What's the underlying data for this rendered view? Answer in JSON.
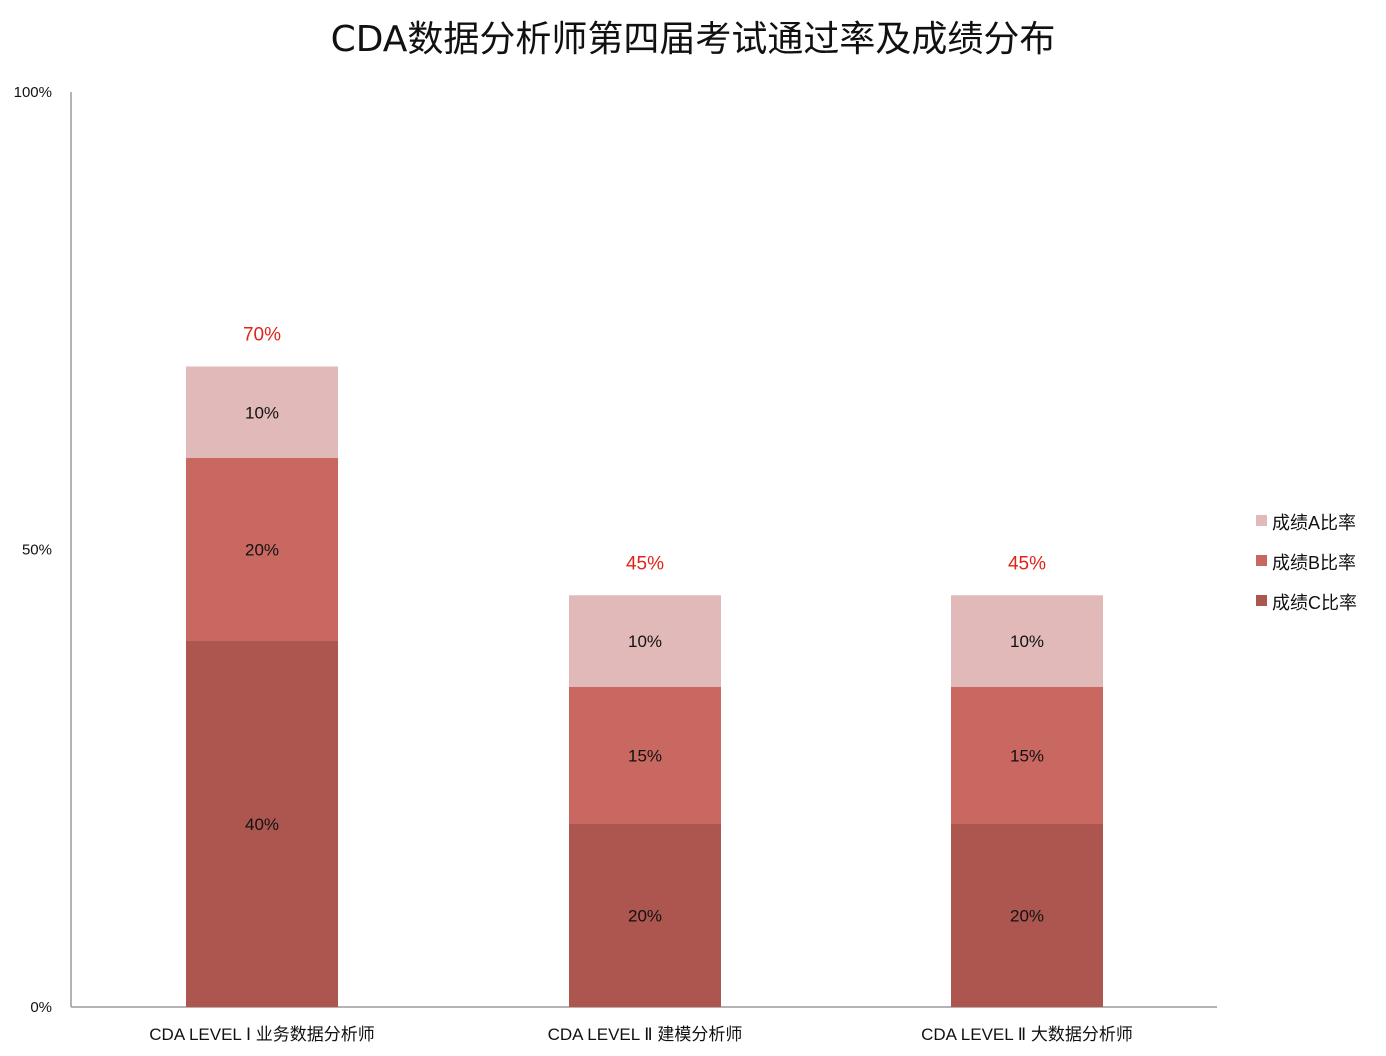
{
  "chart_data": {
    "type": "bar",
    "stacked": true,
    "title": "CDA数据分析师第四届考试通过率及成绩分布",
    "xlabel": "",
    "ylabel": "",
    "ylim": [
      0,
      100
    ],
    "yticks": [
      "0%",
      "50%",
      "100%"
    ],
    "ytick_values": [
      0,
      50,
      100
    ],
    "categories": [
      "CDA LEVEL Ⅰ 业务数据分析师",
      "CDA LEVEL Ⅱ 建模分析师",
      "CDA LEVEL Ⅱ 大数据分析师"
    ],
    "series": [
      {
        "name": "成绩C比率",
        "values": [
          40,
          20,
          20
        ],
        "labels": [
          "40%",
          "20%",
          "20%"
        ],
        "color": "#ad5650"
      },
      {
        "name": "成绩B比率",
        "values": [
          20,
          15,
          15
        ],
        "labels": [
          "20%",
          "15%",
          "15%"
        ],
        "color": "#c96761"
      },
      {
        "name": "成绩A比率",
        "values": [
          10,
          10,
          10
        ],
        "labels": [
          "10%",
          "10%",
          "10%"
        ],
        "color": "#e1b9b8"
      }
    ],
    "totals": [
      70,
      45,
      45
    ],
    "total_labels": [
      "70%",
      "45%",
      "45%"
    ],
    "total_label_color": "#e2231a",
    "legend": {
      "position": "right",
      "order": [
        "成绩A比率",
        "成绩B比率",
        "成绩C比率"
      ]
    },
    "grid": false
  }
}
